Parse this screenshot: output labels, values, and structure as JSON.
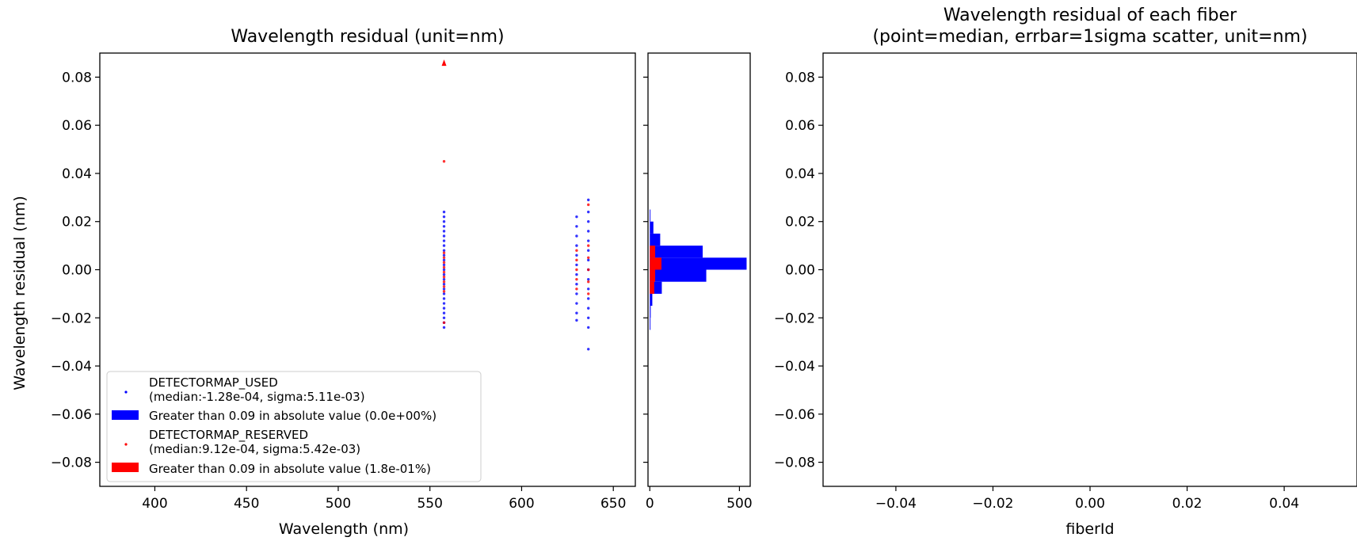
{
  "chart_data": [
    {
      "type": "scatter",
      "title": "Wavelength residual (unit=nm)",
      "xlabel": "Wavelength (nm)",
      "ylabel": "Wavelength residual (nm)",
      "xlim": [
        370,
        662
      ],
      "ylim": [
        -0.09,
        0.09
      ],
      "xticks": [
        400,
        450,
        500,
        550,
        600,
        650
      ],
      "yticks": [
        -0.08,
        -0.06,
        -0.04,
        -0.02,
        0.0,
        0.02,
        0.04,
        0.06,
        0.08
      ],
      "yticklabels": [
        "−0.08",
        "−0.06",
        "−0.04",
        "−0.02",
        "0.00",
        "0.02",
        "0.04",
        "0.06",
        "0.08"
      ],
      "legend_position": "lower-left",
      "legend": [
        {
          "label": "DETECTORMAP_USED",
          "sublabel": "(median:-1.28e-04, sigma:5.11e-03)",
          "marker": "dot",
          "color": "#0000ff"
        },
        {
          "label": "Greater than 0.09 in absolute value (0.0e+00%)",
          "marker": "patch",
          "color": "#0000ff"
        },
        {
          "label": "DETECTORMAP_RESERVED",
          "sublabel": "(median:9.12e-04, sigma:5.42e-03)",
          "marker": "dot",
          "color": "#ff0000"
        },
        {
          "label": "Greater than 0.09 in absolute value (1.8e-01%)",
          "marker": "patch",
          "color": "#ff0000"
        }
      ],
      "series": [
        {
          "name": "DETECTORMAP_USED",
          "color": "#0000ff",
          "points": [
            [
              557.7,
              0.024
            ],
            [
              557.7,
              0.022
            ],
            [
              557.7,
              0.02
            ],
            [
              557.7,
              0.018
            ],
            [
              557.7,
              0.016
            ],
            [
              557.7,
              0.014
            ],
            [
              557.7,
              0.012
            ],
            [
              557.7,
              0.01
            ],
            [
              557.7,
              0.008
            ],
            [
              557.7,
              0.006
            ],
            [
              557.7,
              0.004
            ],
            [
              557.7,
              0.002
            ],
            [
              557.7,
              0.0
            ],
            [
              557.7,
              -0.002
            ],
            [
              557.7,
              -0.004
            ],
            [
              557.7,
              -0.006
            ],
            [
              557.7,
              -0.008
            ],
            [
              557.7,
              -0.01
            ],
            [
              557.7,
              -0.012
            ],
            [
              557.7,
              -0.014
            ],
            [
              557.7,
              -0.016
            ],
            [
              557.7,
              -0.018
            ],
            [
              557.7,
              -0.02
            ],
            [
              557.7,
              -0.022
            ],
            [
              557.7,
              -0.024
            ],
            [
              630.0,
              0.022
            ],
            [
              630.0,
              0.018
            ],
            [
              630.0,
              0.014
            ],
            [
              630.0,
              0.01
            ],
            [
              630.0,
              0.006
            ],
            [
              630.0,
              0.002
            ],
            [
              630.0,
              -0.002
            ],
            [
              630.0,
              -0.006
            ],
            [
              630.0,
              -0.01
            ],
            [
              630.0,
              -0.014
            ],
            [
              630.0,
              -0.018
            ],
            [
              630.0,
              -0.021
            ],
            [
              636.4,
              0.029
            ],
            [
              636.4,
              0.024
            ],
            [
              636.4,
              0.02
            ],
            [
              636.4,
              0.016
            ],
            [
              636.4,
              0.012
            ],
            [
              636.4,
              0.008
            ],
            [
              636.4,
              0.004
            ],
            [
              636.4,
              0.0
            ],
            [
              636.4,
              -0.004
            ],
            [
              636.4,
              -0.008
            ],
            [
              636.4,
              -0.012
            ],
            [
              636.4,
              -0.016
            ],
            [
              636.4,
              -0.02
            ],
            [
              636.4,
              -0.024
            ],
            [
              636.4,
              -0.033
            ]
          ]
        },
        {
          "name": "DETECTORMAP_RESERVED",
          "color": "#ff0000",
          "points": [
            [
              557.7,
              0.045
            ],
            [
              557.7,
              0.007
            ],
            [
              557.7,
              0.005
            ],
            [
              557.7,
              0.003
            ],
            [
              557.7,
              0.001
            ],
            [
              557.7,
              -0.001
            ],
            [
              557.7,
              -0.003
            ],
            [
              557.7,
              -0.005
            ],
            [
              557.7,
              -0.007
            ],
            [
              557.7,
              -0.009
            ],
            [
              557.7,
              -0.022
            ],
            [
              630.0,
              0.008
            ],
            [
              630.0,
              0.004
            ],
            [
              630.0,
              0.0
            ],
            [
              630.0,
              -0.004
            ],
            [
              630.0,
              -0.008
            ],
            [
              636.4,
              0.027
            ],
            [
              636.4,
              0.01
            ],
            [
              636.4,
              0.005
            ],
            [
              636.4,
              0.0
            ],
            [
              636.4,
              -0.005
            ],
            [
              636.4,
              -0.01
            ]
          ],
          "outliers": [
            [
              557.7,
              0.086
            ]
          ]
        }
      ]
    },
    {
      "type": "bar",
      "orientation": "horizontal",
      "xlim": [
        -10,
        560
      ],
      "ylim": [
        -0.09,
        0.09
      ],
      "xticks": [
        0,
        500
      ],
      "bin_edges": [
        -0.025,
        -0.02,
        -0.015,
        -0.01,
        -0.005,
        0.0,
        0.005,
        0.01,
        0.015,
        0.02,
        0.025
      ],
      "series": [
        {
          "name": "DETECTORMAP_USED",
          "color": "#0000ff",
          "counts": [
            4,
            5,
            14,
            67,
            315,
            540,
            295,
            58,
            20,
            4
          ]
        },
        {
          "name": "DETECTORMAP_RESERVED",
          "color": "#ff0000",
          "counts": [
            0,
            0,
            0,
            25,
            30,
            65,
            30,
            0,
            0,
            0
          ]
        }
      ]
    },
    {
      "type": "scatter",
      "title": "Wavelength residual of each fiber",
      "subtitle": "(point=median, errbar=1sigma scatter, unit=nm)",
      "xlabel": "fiberId",
      "xlim": [
        -0.055,
        0.055
      ],
      "ylim": [
        -0.09,
        0.09
      ],
      "xticks": [
        -0.04,
        -0.02,
        0.0,
        0.02,
        0.04
      ],
      "xticklabels": [
        "−0.04",
        "−0.02",
        "0.00",
        "0.02",
        "0.04"
      ],
      "yticks": [
        -0.08,
        -0.06,
        -0.04,
        -0.02,
        0.0,
        0.02,
        0.04,
        0.06,
        0.08
      ],
      "yticklabels": [
        "−0.08",
        "−0.06",
        "−0.04",
        "−0.02",
        "0.00",
        "0.02",
        "0.04",
        "0.06",
        "0.08"
      ],
      "series": []
    }
  ]
}
